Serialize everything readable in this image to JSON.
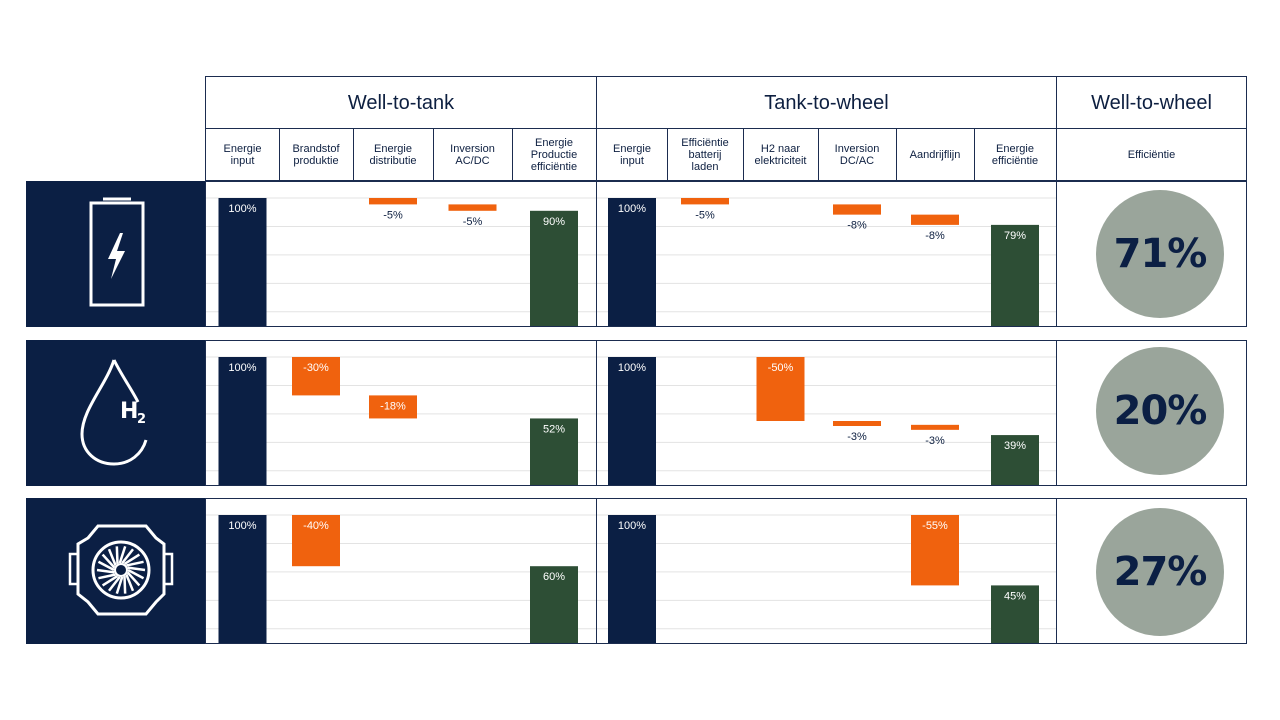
{
  "sections": {
    "wtt": "Well-to-tank",
    "ttw": "Tank-to-wheel",
    "wtw": "Well-to-wheel"
  },
  "columns": {
    "wtt": [
      "Energie\ninput",
      "Brandstof\nproduktie",
      "Energie\ndistributie",
      "Inversion\nAC/DC",
      "Energie\nProductie\nefficiëntie"
    ],
    "ttw": [
      "Energie\ninput",
      "Efficiëntie\nbatterij\nladen",
      "H2 naar\nelektriciteit",
      "Inversion\nDC/AC",
      "Aandrijflijn",
      "Energie\nefficiëntie"
    ],
    "wtw": "Efficiëntie"
  },
  "colors": {
    "navy": "#0b1f44",
    "orange": "#f0620e",
    "green": "#2d4e35",
    "grey": "#9aa59b"
  },
  "rows": [
    {
      "icon": "battery-charge-icon",
      "wtw": "71%"
    },
    {
      "icon": "hydrogen-drop-icon",
      "wtw": "20%"
    },
    {
      "icon": "engine-fan-icon",
      "wtw": "27%"
    }
  ],
  "chart_data": [
    {
      "type": "bar",
      "panel": "Well-to-tank",
      "row": "battery",
      "categories": [
        "Energie input",
        "Brandstof produktie",
        "Energie distributie",
        "Inversion AC/DC",
        "Energie Productie efficiëntie"
      ],
      "values": [
        100,
        null,
        -5,
        -5,
        90
      ],
      "labels": [
        "100%",
        "",
        "-5%",
        "-5%",
        "90%"
      ]
    },
    {
      "type": "bar",
      "panel": "Tank-to-wheel",
      "row": "battery",
      "categories": [
        "Energie input",
        "Efficiëntie batterij laden",
        "H2 naar elektriciteit",
        "Inversion DC/AC",
        "Aandrijflijn",
        "Energie efficiëntie"
      ],
      "values": [
        100,
        -5,
        null,
        -8,
        -8,
        79
      ],
      "labels": [
        "100%",
        "-5%",
        "",
        "-8%",
        "-8%",
        "79%"
      ]
    },
    {
      "type": "bar",
      "panel": "Well-to-tank",
      "row": "hydrogen",
      "categories": [
        "Energie input",
        "Brandstof produktie",
        "Energie distributie",
        "Inversion AC/DC",
        "Energie Productie efficiëntie"
      ],
      "values": [
        100,
        -30,
        -18,
        null,
        52
      ],
      "labels": [
        "100%",
        "-30%",
        "-18%",
        "",
        "52%"
      ]
    },
    {
      "type": "bar",
      "panel": "Tank-to-wheel",
      "row": "hydrogen",
      "categories": [
        "Energie input",
        "Efficiëntie batterij laden",
        "H2 naar elektriciteit",
        "Inversion DC/AC",
        "Aandrijflijn",
        "Energie efficiëntie"
      ],
      "values": [
        100,
        null,
        -50,
        -3,
        -3,
        39
      ],
      "labels": [
        "100%",
        "",
        "-50%",
        "-3%",
        "-3%",
        "39%"
      ]
    },
    {
      "type": "bar",
      "panel": "Well-to-tank",
      "row": "engine",
      "categories": [
        "Energie input",
        "Brandstof produktie",
        "Energie distributie",
        "Inversion AC/DC",
        "Energie Productie efficiëntie"
      ],
      "values": [
        100,
        -40,
        null,
        null,
        60
      ],
      "labels": [
        "100%",
        "-40%",
        "",
        "",
        "60%"
      ]
    },
    {
      "type": "bar",
      "panel": "Tank-to-wheel",
      "row": "engine",
      "categories": [
        "Energie input",
        "Efficiëntie batterij laden",
        "H2 naar elektriciteit",
        "Inversion DC/AC",
        "Aandrijflijn",
        "Energie efficiëntie"
      ],
      "values": [
        100,
        null,
        null,
        null,
        -55,
        45
      ],
      "labels": [
        "100%",
        "",
        "",
        "",
        "-55%",
        "45%"
      ]
    }
  ]
}
